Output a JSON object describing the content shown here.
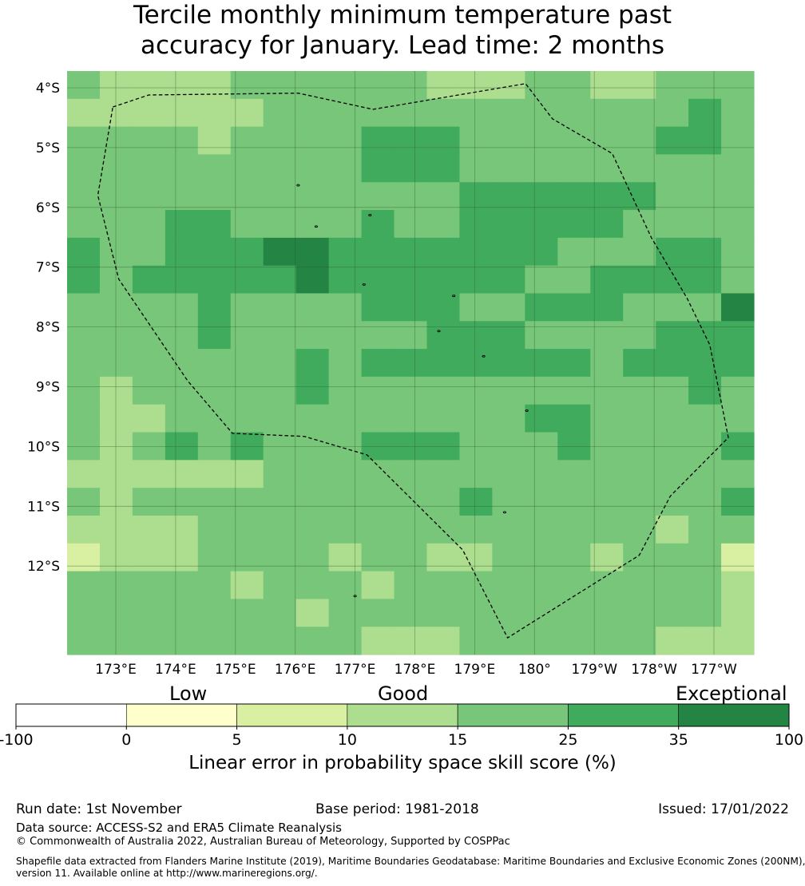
{
  "title": {
    "line1": "Tercile monthly minimum temperature past",
    "line2": "accuracy for January. Lead time: 2 months"
  },
  "map": {
    "lat_labels": [
      "4°S",
      "5°S",
      "6°S",
      "7°S",
      "8°S",
      "9°S",
      "10°S",
      "11°S",
      "12°S"
    ],
    "lon_labels": [
      "173°E",
      "174°E",
      "175°E",
      "176°E",
      "177°E",
      "178°E",
      "179°E",
      "180°",
      "179°W",
      "178°W",
      "177°W"
    ],
    "palette": {
      "0": "#ffffff",
      "1": "#ffffcc",
      "2": "#d9f0a3",
      "3": "#addd8e",
      "4": "#78c679",
      "5": "#41ab5d",
      "6": "#238443"
    },
    "grid": [
      "433334444443334433444",
      "333333444444444444454",
      "444434444555444444554",
      "444444444555444444444",
      "444444444444555555444",
      "444554444544555554444",
      "544555665555555444554",
      "545555565555554455554",
      "444454444555445554446",
      "444454444445554444555",
      "444444454555555545555",
      "434444454444444444454",
      "433444444444445544444",
      "434545444555444544445",
      "333333444444444444444",
      "434444444444544444445",
      "333344444444444444344",
      "233344443443344434442",
      "444443444344444444443",
      "444444434444444444443",
      "444444444333444444333"
    ],
    "eez_boundary": [
      [
        4.32,
        172.95
      ],
      [
        4.12,
        173.55
      ],
      [
        4.09,
        176.05
      ],
      [
        4.36,
        177.3
      ],
      [
        3.93,
        179.85
      ],
      [
        4.52,
        180.3
      ],
      [
        5.1,
        181.3
      ],
      [
        6.5,
        181.95
      ],
      [
        7.52,
        182.55
      ],
      [
        8.3,
        182.93
      ],
      [
        9.85,
        183.24
      ],
      [
        10.83,
        182.27
      ],
      [
        11.82,
        181.75
      ],
      [
        13.2,
        179.55
      ],
      [
        11.73,
        178.8
      ],
      [
        10.14,
        177.2
      ],
      [
        9.83,
        176.15
      ],
      [
        9.78,
        174.95
      ],
      [
        8.9,
        174.2
      ],
      [
        7.2,
        173.05
      ],
      [
        5.8,
        172.7
      ],
      [
        4.32,
        172.95
      ]
    ],
    "islands": [
      [
        5.63,
        176.05
      ],
      [
        6.13,
        177.25
      ],
      [
        6.32,
        176.35
      ],
      [
        7.29,
        177.15
      ],
      [
        7.48,
        178.65
      ],
      [
        8.07,
        178.4
      ],
      [
        8.49,
        179.15
      ],
      [
        9.4,
        179.87
      ],
      [
        11.1,
        179.5
      ],
      [
        12.5,
        177.0
      ]
    ]
  },
  "colorbar": {
    "categories": [
      "Low",
      "Good",
      "Exceptional"
    ],
    "bins": [
      {
        "from": -100,
        "to": 0,
        "color": "#ffffff"
      },
      {
        "from": 0,
        "to": 5,
        "color": "#ffffcc"
      },
      {
        "from": 5,
        "to": 10,
        "color": "#d9f0a3"
      },
      {
        "from": 10,
        "to": 15,
        "color": "#addd8e"
      },
      {
        "from": 15,
        "to": 25,
        "color": "#78c679"
      },
      {
        "from": 25,
        "to": 35,
        "color": "#41ab5d"
      },
      {
        "from": 35,
        "to": 100,
        "color": "#238443"
      }
    ],
    "tick_labels": [
      "-100",
      "0",
      "5",
      "10",
      "15",
      "25",
      "35",
      "100"
    ],
    "label": "Linear error in probability space skill score (%)"
  },
  "footer": {
    "run_date": "Run date: 1st November",
    "base_period": "Base period: 1981-2018",
    "issued": "Issued: 17/01/2022",
    "data_source": "Data source: ACCESS-S2 and ERA5 Climate Reanalysis",
    "copyright": "© Commonwealth of Australia 2022, Australian Bureau of Meteorology, Supported by COSPPac",
    "shapefile_line1": "Shapefile data extracted from Flanders Marine Institute (2019), Maritime Boundaries Geodatabase: Maritime Boundaries and Exclusive Economic Zones (200NM),",
    "shapefile_line2": "version 11. Available online at http://www.marineregions.org/."
  }
}
